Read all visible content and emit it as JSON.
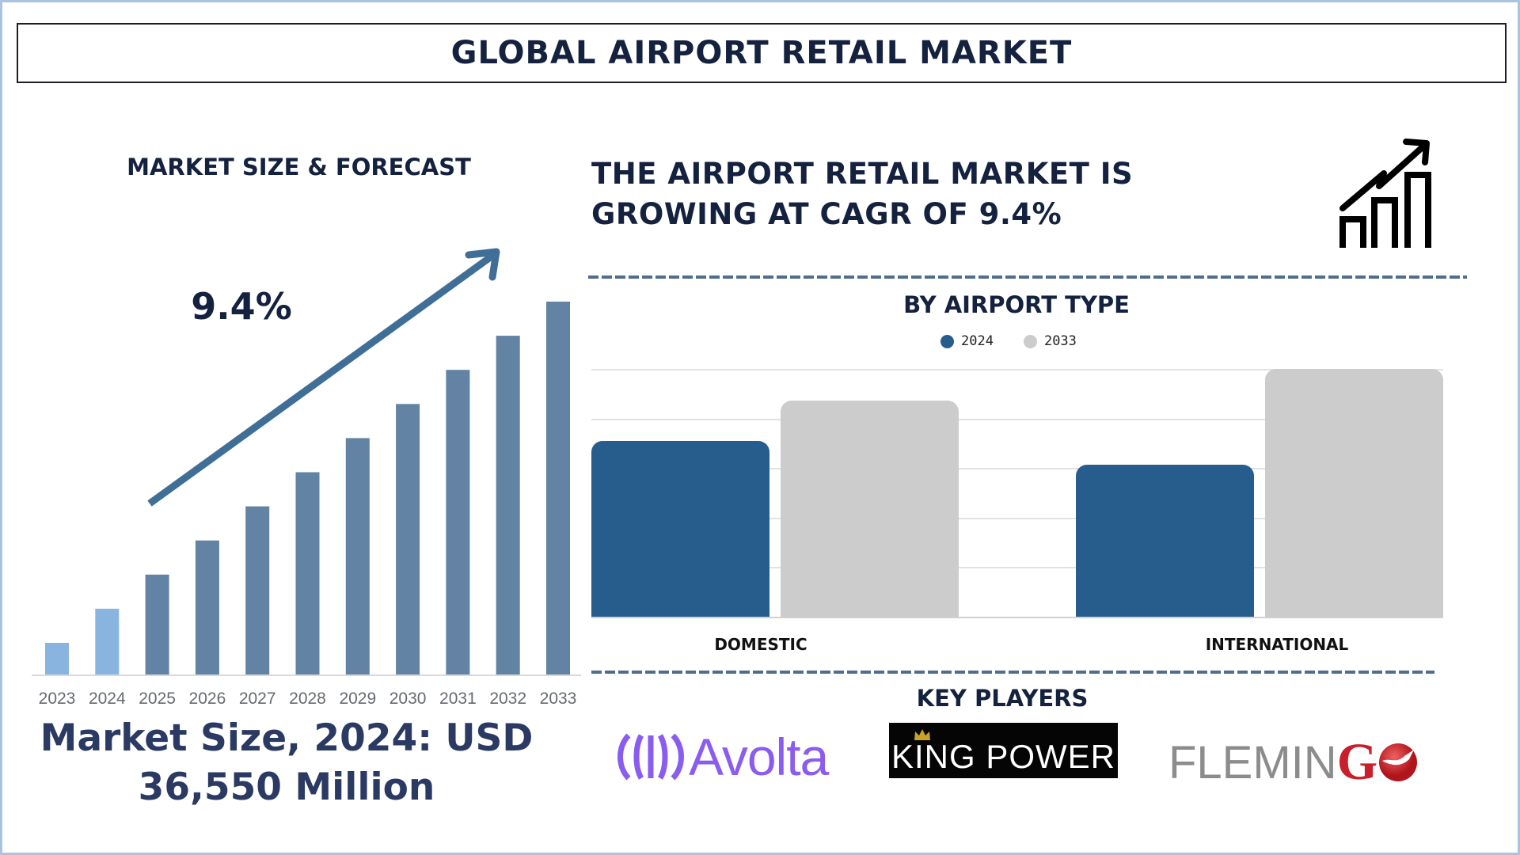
{
  "header": {
    "title": "GLOBAL AIRPORT RETAIL MARKET"
  },
  "left_panel": {
    "heading": "MARKET SIZE & FORECAST",
    "cagr_label": "9.4%",
    "market_size_line1": "Market Size, 2024: USD",
    "market_size_line2": "36,550 Million"
  },
  "right_panel": {
    "headline_line1": "THE AIRPORT RETAIL MARKET IS",
    "headline_line2": "GROWING AT CAGR OF 9.4%",
    "icon": "growth-chart-icon",
    "segment_title": "BY AIRPORT TYPE",
    "key_players_title": "KEY PLAYERS",
    "key_players": [
      "Avolta",
      "KING POWER",
      "FLEMINGO"
    ]
  },
  "colors": {
    "navy_text": "#14213f",
    "forecast_bar": "#6283a3",
    "historic_bar": "#8ab4e0",
    "bar_2024": "#275d8c",
    "bar_2033": "#cccccc",
    "arrow": "#3f6e96",
    "avolta": "#8a5cf0",
    "flemingo_red": "#c8202a",
    "flemingo_gray": "#8c8c8c"
  },
  "chart_data": [
    {
      "type": "bar",
      "title": "MARKET SIZE & FORECAST",
      "categories": [
        "2023",
        "2024",
        "2025",
        "2026",
        "2027",
        "2028",
        "2029",
        "2030",
        "2031",
        "2032",
        "2033"
      ],
      "values": [
        1.0,
        2.0,
        3.0,
        4.0,
        5.0,
        6.0,
        7.0,
        8.0,
        9.0,
        10.0,
        11.0
      ],
      "value_note": "relative bar heights (no y-axis shown); bars rise linearly",
      "annotation": "9.4% CAGR arrow",
      "xlabel": "",
      "ylabel": "",
      "grid": false
    },
    {
      "type": "bar",
      "title": "BY AIRPORT TYPE",
      "categories": [
        "DOMESTIC",
        "INTERNATIONAL"
      ],
      "series": [
        {
          "name": "2024",
          "values": [
            4.4,
            3.8
          ]
        },
        {
          "name": "2033",
          "values": [
            5.4,
            6.2
          ]
        }
      ],
      "value_note": "relative heights in gridline units (5 gridlines, no axis labels)",
      "ylim": [
        0,
        6.2
      ],
      "legend_position": "top",
      "grid": true
    }
  ]
}
